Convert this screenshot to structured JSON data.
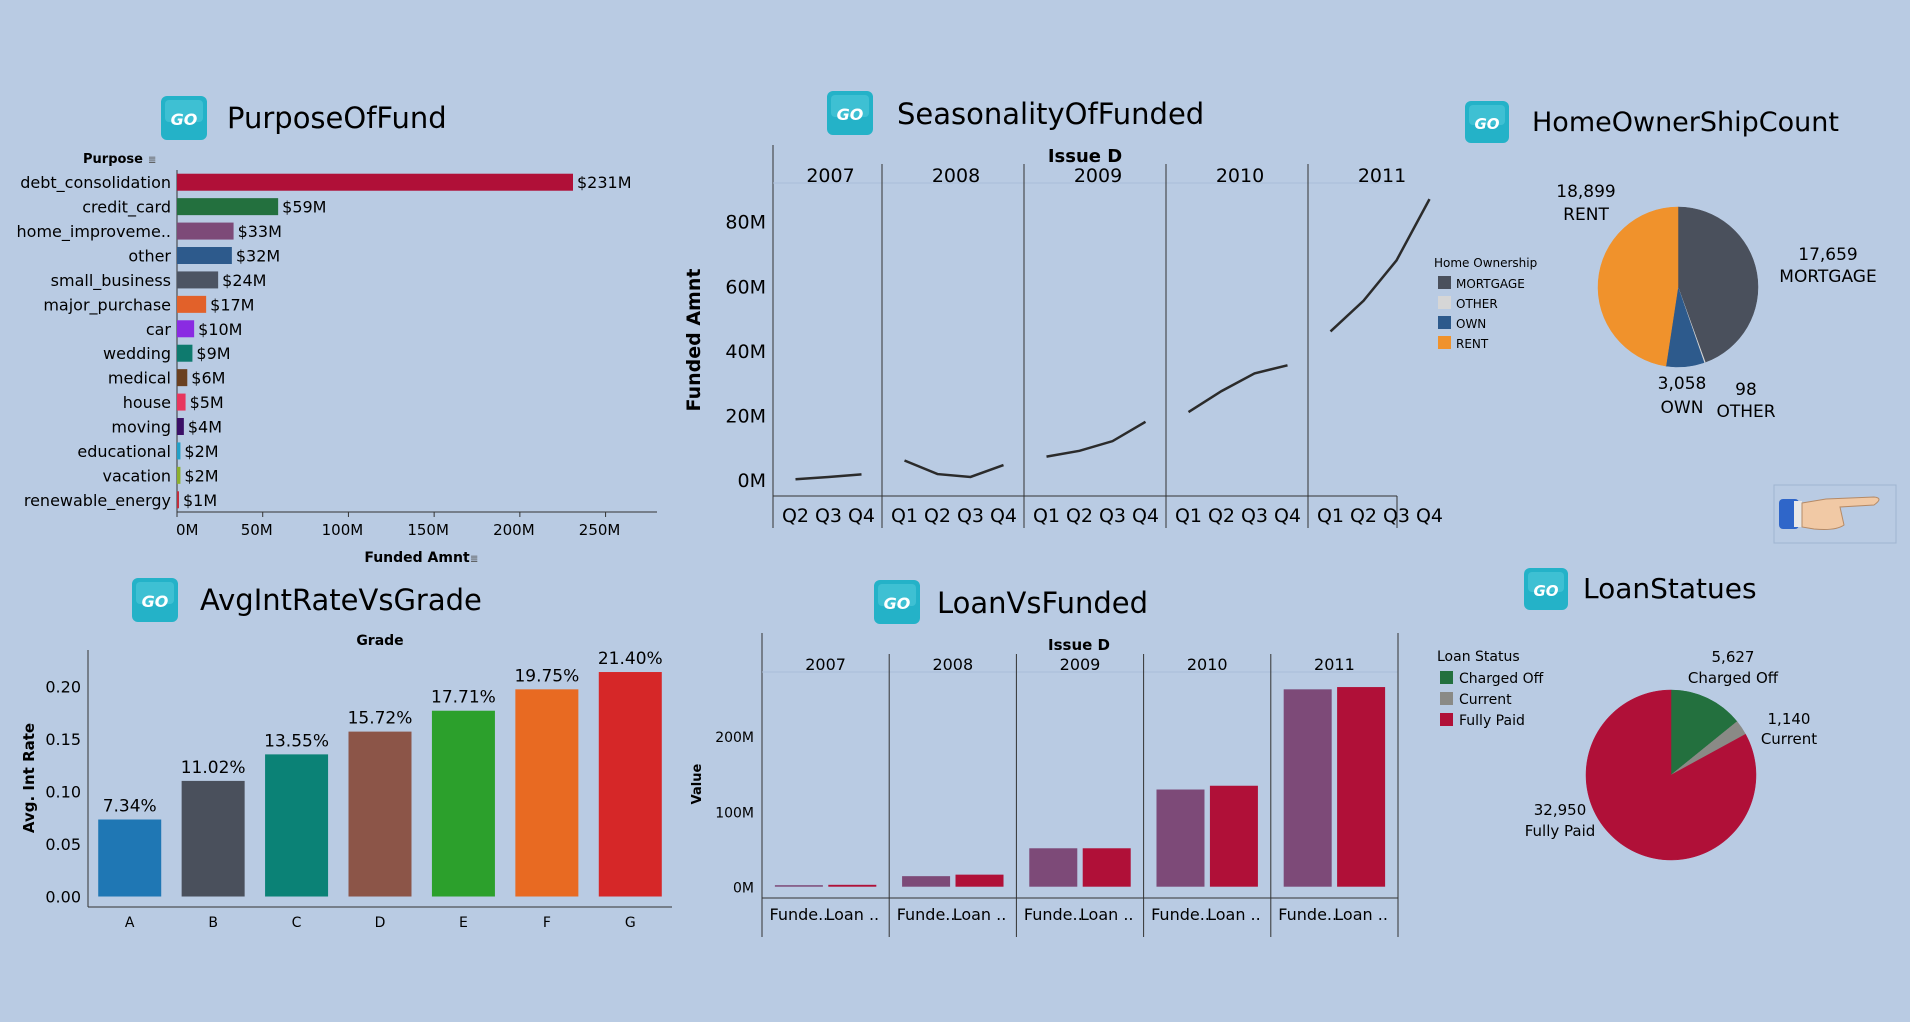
{
  "colors": {
    "background": "#b9cbe3",
    "logo": "#24b2c8",
    "axis": "#333333",
    "line": "#2b2b2b"
  },
  "panels": {
    "purpose": {
      "title": "PurposeOfFund",
      "logo_text": "GO"
    },
    "seasonality": {
      "title": "SeasonalityOfFunded",
      "logo_text": "GO"
    },
    "home": {
      "title": "HomeOwnerShipCount",
      "logo_text": "GO"
    },
    "avgint": {
      "title": "AvgIntRateVsGrade",
      "logo_text": "GO"
    },
    "loanvs": {
      "title": "LoanVsFunded",
      "logo_text": "GO"
    },
    "status": {
      "title": "LoanStatues",
      "logo_text": "GO"
    }
  },
  "pointer": {
    "icon": "pointing-hand-icon"
  },
  "chart_data": [
    {
      "id": "purpose",
      "type": "bar",
      "orientation": "horizontal",
      "row_header": "Purpose",
      "xlabel": "Funded Amnt",
      "xlim": [
        0,
        280
      ],
      "ticks": [
        {
          "v": 0,
          "label": "0M"
        },
        {
          "v": 50,
          "label": "50M"
        },
        {
          "v": 100,
          "label": "100M"
        },
        {
          "v": 150,
          "label": "150M"
        },
        {
          "v": 200,
          "label": "200M"
        },
        {
          "v": 250,
          "label": "250M"
        }
      ],
      "categories": [
        "debt_consolidation",
        "credit_card",
        "home_improveme..",
        "other",
        "small_business",
        "major_purchase",
        "car",
        "wedding",
        "medical",
        "house",
        "moving",
        "educational",
        "vacation",
        "renewable_energy"
      ],
      "values": [
        231,
        59,
        33,
        32,
        24,
        17,
        10,
        9,
        6,
        5,
        4,
        2,
        2,
        1
      ],
      "labels": [
        "$231M",
        "$59M",
        "$33M",
        "$32M",
        "$24M",
        "$17M",
        "$10M",
        "$9M",
        "$6M",
        "$5M",
        "$4M",
        "$2M",
        "$2M",
        "$1M"
      ],
      "colors": [
        "#b01038",
        "#23703e",
        "#7d4a78",
        "#2d5a8c",
        "#4c5463",
        "#e2612a",
        "#8a2be2",
        "#0e7a6e",
        "#6a4020",
        "#e8365e",
        "#3b0f66",
        "#22a0c8",
        "#8db02e",
        "#c22d3c"
      ]
    },
    {
      "id": "seasonality",
      "type": "line",
      "column_header": "Issue D",
      "ylabel": "Funded Amnt",
      "ylim": [
        -5,
        92
      ],
      "ticks": [
        {
          "v": 0,
          "label": "0M"
        },
        {
          "v": 20,
          "label": "20M"
        },
        {
          "v": 40,
          "label": "40M"
        },
        {
          "v": 60,
          "label": "60M"
        },
        {
          "v": 80,
          "label": "80M"
        }
      ],
      "series": [
        {
          "year": "2007",
          "quarters": [
            "Q2",
            "Q3",
            "Q4"
          ],
          "values": [
            0.2,
            0.9,
            1.7
          ]
        },
        {
          "year": "2008",
          "quarters": [
            "Q1",
            "Q2",
            "Q3",
            "Q4"
          ],
          "values": [
            6,
            1.8,
            0.9,
            4.6
          ]
        },
        {
          "year": "2009",
          "quarters": [
            "Q1",
            "Q2",
            "Q3",
            "Q4"
          ],
          "values": [
            7.2,
            9,
            12,
            18
          ]
        },
        {
          "year": "2010",
          "quarters": [
            "Q1",
            "Q2",
            "Q3",
            "Q4"
          ],
          "values": [
            21,
            27.5,
            33,
            35.5
          ]
        },
        {
          "year": "2011",
          "quarters": [
            "Q1",
            "Q2",
            "Q3",
            "Q4"
          ],
          "values": [
            46,
            55.5,
            68,
            87
          ]
        }
      ]
    },
    {
      "id": "home",
      "type": "pie",
      "legend_title": "Home Ownership",
      "slices": [
        {
          "name": "MORTGAGE",
          "value": 17659,
          "label": "17,659",
          "color": "#4a505c"
        },
        {
          "name": "OTHER",
          "value": 98,
          "label": "98",
          "color": "#d6d6d6"
        },
        {
          "name": "OWN",
          "value": 3058,
          "label": "3,058",
          "color": "#2d5a8c"
        },
        {
          "name": "RENT",
          "value": 18899,
          "label": "18,899",
          "color": "#f0922c"
        }
      ]
    },
    {
      "id": "avgint",
      "type": "bar",
      "column_header": "Grade",
      "ylabel": "Avg. Int Rate",
      "ylim": [
        -0.01,
        0.235
      ],
      "ticks": [
        {
          "v": 0.0,
          "label": "0.00"
        },
        {
          "v": 0.05,
          "label": "0.05"
        },
        {
          "v": 0.1,
          "label": "0.10"
        },
        {
          "v": 0.15,
          "label": "0.15"
        },
        {
          "v": 0.2,
          "label": "0.20"
        }
      ],
      "categories": [
        "A",
        "B",
        "C",
        "D",
        "E",
        "F",
        "G"
      ],
      "values": [
        0.0734,
        0.1102,
        0.1355,
        0.1572,
        0.1771,
        0.1975,
        0.214
      ],
      "labels": [
        "7.34%",
        "11.02%",
        "13.55%",
        "15.72%",
        "17.71%",
        "19.75%",
        "21.40%"
      ],
      "colors": [
        "#1f77b4",
        "#4a505c",
        "#0b8276",
        "#8c5548",
        "#2ca02c",
        "#e86a22",
        "#d62728"
      ]
    },
    {
      "id": "loanvs",
      "type": "bar",
      "column_header": "Issue D",
      "ylabel": "Value",
      "ylim": [
        -15,
        285
      ],
      "ticks": [
        {
          "v": 0,
          "label": "0M"
        },
        {
          "v": 100,
          "label": "100M"
        },
        {
          "v": 200,
          "label": "200M"
        }
      ],
      "bar_labels": [
        "Funde..",
        "Loan .."
      ],
      "series_colors": [
        "#7d4a78",
        "#b01038"
      ],
      "years": [
        {
          "year": "2007",
          "values": [
            2.0,
            2.5
          ]
        },
        {
          "year": "2008",
          "values": [
            14,
            16
          ]
        },
        {
          "year": "2009",
          "values": [
            51,
            51
          ]
        },
        {
          "year": "2010",
          "values": [
            129,
            134
          ]
        },
        {
          "year": "2011",
          "values": [
            262,
            265
          ]
        }
      ]
    },
    {
      "id": "status",
      "type": "pie",
      "legend_title": "Loan Status",
      "slices": [
        {
          "name": "Charged Off",
          "value": 5627,
          "label": "5,627",
          "color": "#23703e"
        },
        {
          "name": "Current",
          "value": 1140,
          "label": "1,140",
          "color": "#8a8a86"
        },
        {
          "name": "Fully Paid",
          "value": 32950,
          "label": "32,950",
          "color": "#b01038"
        }
      ]
    }
  ]
}
